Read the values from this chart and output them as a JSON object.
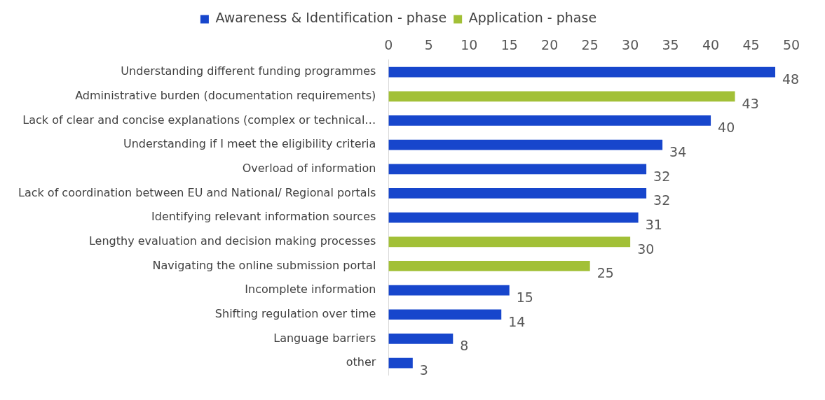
{
  "chart_data": {
    "type": "bar",
    "orientation": "horizontal",
    "categories": [
      "Understanding different funding programmes",
      "Administrative burden (documentation requirements)",
      "Lack of clear and concise explanations (complex or technical…",
      "Understanding if I meet the eligibility criteria",
      "Overload of information",
      "Lack of coordination between EU and National/ Regional portals",
      "Identifying relevant information sources",
      "Lengthy evaluation and decision making processes",
      "Navigating the online submission portal",
      "Incomplete information",
      "Shifting regulation over time",
      "Language barriers",
      "other"
    ],
    "series": [
      {
        "name": "Awareness & Identification - phase",
        "color": "#1746cc",
        "values": [
          48,
          null,
          40,
          34,
          32,
          32,
          31,
          null,
          null,
          15,
          14,
          8,
          3
        ]
      },
      {
        "name": "Application - phase",
        "color": "#a2c037",
        "values": [
          null,
          43,
          null,
          null,
          null,
          null,
          null,
          30,
          25,
          null,
          null,
          null,
          null
        ]
      }
    ],
    "xlim": [
      0,
      50
    ],
    "xticks": [
      0,
      5,
      10,
      15,
      20,
      25,
      30,
      35,
      40,
      45,
      50
    ],
    "grid": false,
    "legend": "top",
    "data_labels": true
  }
}
